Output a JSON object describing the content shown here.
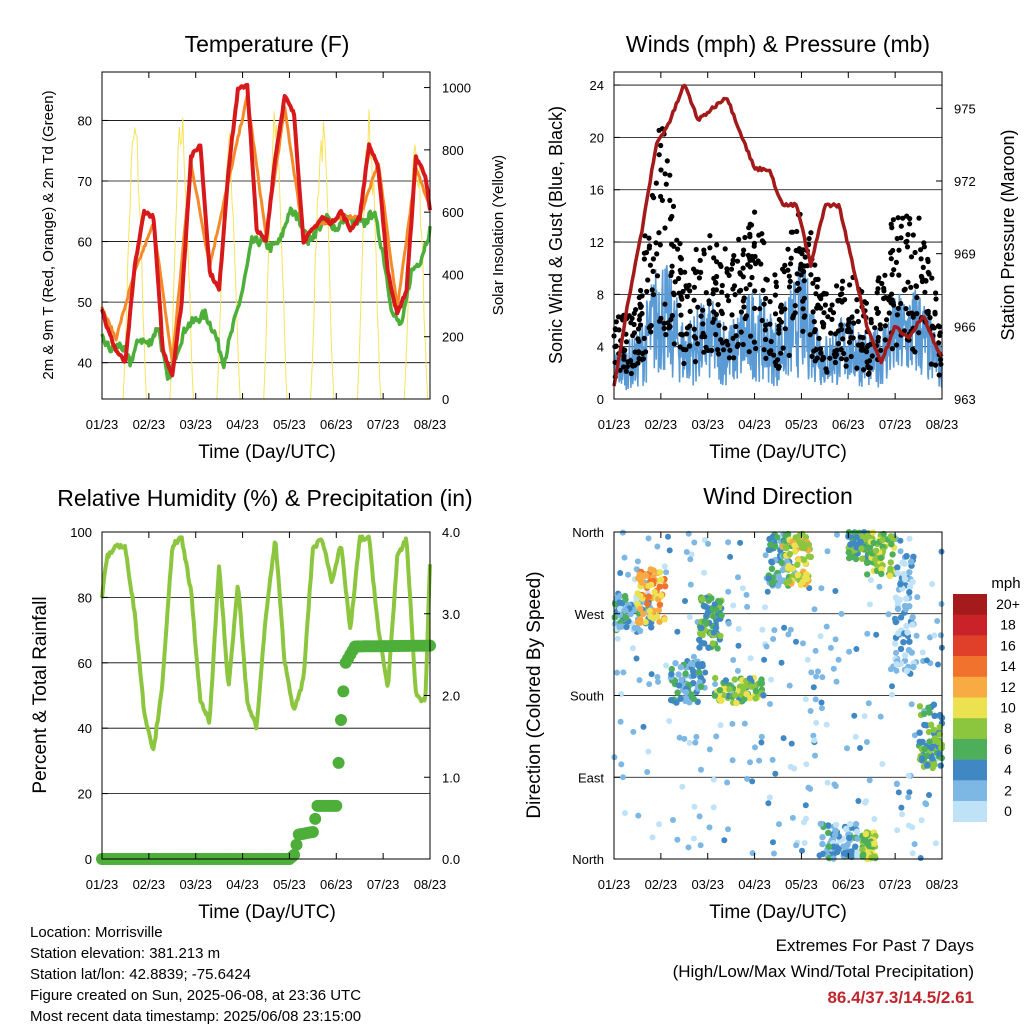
{
  "info": {
    "location": "Location: Morrisville",
    "elevation": "Station elevation: 381.213 m",
    "latlon": "Station lat/lon: 42.8839; -75.6424",
    "created": "Figure created on Sun, 2025-06-08, at 23:36 UTC",
    "recent": "Most recent data timestamp: 2025/06/08 23:15:00"
  },
  "extremes": {
    "title": "Extremes For Past 7 Days",
    "subtitle": "(High/Low/Max Wind/Total Precipitation)",
    "values": "86.4/37.3/14.5/2.61"
  },
  "colors": {
    "temp2m": "#d7191c",
    "temp9m": "#f58a2a",
    "dew": "#4daf3a",
    "solar": "#f7e35a",
    "wind": "#5b9bd5",
    "gust": "#000000",
    "pressure": "#a31a1a",
    "rh": "#8cc63f",
    "precip": "#4daf3a"
  },
  "chart_data": [
    {
      "type": "line",
      "title": "Temperature (F)",
      "xlabel": "Time (Day/UTC)",
      "ylabel": "2m & 9m T (Red, Orange) & 2m Td (Green)",
      "y2label": "Solar Insolation (Yellow)",
      "x_ticks": [
        "01/23",
        "02/23",
        "03/23",
        "04/23",
        "05/23",
        "06/23",
        "07/23",
        "08/23"
      ],
      "ylim": [
        34,
        88
      ],
      "y_ticks": [
        40,
        50,
        60,
        70,
        80
      ],
      "y2lim": [
        0,
        1050
      ],
      "y2_ticks": [
        0,
        200,
        400,
        600,
        800,
        1000
      ],
      "grid": true,
      "series": [
        {
          "name": "2m T",
          "x": [
            0,
            0.1,
            0.3,
            0.5,
            0.7,
            0.9,
            1.1,
            1.3,
            1.5,
            1.7,
            1.9,
            2.1,
            2.3,
            2.5,
            2.7,
            2.9,
            3.1,
            3.3,
            3.5,
            3.7,
            3.9,
            4.1,
            4.3,
            4.5,
            4.7,
            4.9,
            5.1,
            5.3,
            5.5,
            5.7,
            5.9,
            6.1,
            6.3,
            6.5,
            6.7,
            6.9,
            7.0
          ],
          "y": [
            49,
            46,
            42,
            40,
            56,
            65,
            64,
            42,
            38,
            50,
            74,
            76,
            55,
            52,
            72,
            85,
            86,
            62,
            60,
            74,
            84,
            81,
            60,
            62,
            64,
            63,
            65,
            62,
            64,
            76,
            72,
            55,
            48,
            52,
            74,
            71,
            65
          ]
        },
        {
          "name": "9m T",
          "x": [
            0,
            0.3,
            0.7,
            1.1,
            1.5,
            1.9,
            2.3,
            2.7,
            3.1,
            3.5,
            3.9,
            4.3,
            4.7,
            5.1,
            5.5,
            5.9,
            6.3,
            6.7,
            7.0
          ],
          "y": [
            49,
            44,
            55,
            63,
            40,
            73,
            56,
            70,
            84,
            61,
            82,
            61,
            63,
            64,
            64,
            73,
            49,
            72,
            66
          ]
        },
        {
          "name": "2m Td",
          "x": [
            0,
            0.2,
            0.4,
            0.6,
            0.8,
            1.0,
            1.2,
            1.4,
            1.6,
            1.8,
            2.0,
            2.2,
            2.4,
            2.6,
            2.8,
            3.0,
            3.2,
            3.4,
            3.6,
            3.8,
            4.0,
            4.2,
            4.4,
            4.6,
            4.8,
            5.0,
            5.2,
            5.4,
            5.6,
            5.8,
            6.0,
            6.2,
            6.4,
            6.6,
            6.8,
            7.0
          ],
          "y": [
            44,
            42,
            43,
            40,
            44,
            43,
            46,
            37,
            42,
            46,
            47,
            48,
            45,
            40,
            46,
            52,
            60,
            60,
            59,
            60,
            65,
            64,
            60,
            62,
            64,
            62,
            64,
            63,
            63,
            65,
            58,
            48,
            46,
            55,
            57,
            62
          ]
        },
        {
          "name": "Solar Insolation",
          "axis": "y2",
          "days": 7,
          "peaks": [
            930,
            950,
            880,
            950,
            920,
            950,
            880
          ]
        }
      ]
    },
    {
      "type": "scatter",
      "title": "Winds (mph) & Pressure (mb)",
      "xlabel": "Time (Day/UTC)",
      "ylabel": "Sonic Wind & Gust (Blue, Black)",
      "y2label": "Station Pressure (Maroon)",
      "x_ticks": [
        "01/23",
        "02/23",
        "03/23",
        "04/23",
        "05/23",
        "06/23",
        "07/23",
        "08/23"
      ],
      "ylim": [
        0,
        25
      ],
      "y_ticks": [
        0,
        4,
        8,
        12,
        16,
        20,
        24
      ],
      "y2lim": [
        963,
        976.5
      ],
      "y2_ticks": [
        963,
        966,
        969,
        972,
        975
      ],
      "grid": true,
      "wind_envelope": {
        "x": [
          0,
          0.5,
          1.0,
          1.5,
          2.0,
          2.5,
          3.0,
          3.5,
          4.0,
          4.5,
          5.0,
          5.5,
          6.0,
          6.5,
          7.0
        ],
        "y": [
          4,
          5,
          12,
          6,
          8,
          6,
          9,
          6,
          11,
          5,
          7,
          5,
          8,
          9,
          4
        ]
      },
      "gust_envelope": {
        "x": [
          0,
          0.5,
          1.0,
          1.5,
          2.0,
          2.5,
          3.0,
          3.5,
          4.0,
          4.5,
          5.0,
          5.5,
          6.0,
          6.5,
          7.0
        ],
        "y": [
          6,
          8,
          22,
          10,
          13,
          11,
          15,
          9,
          16,
          8,
          10,
          7,
          15,
          14,
          6
        ]
      },
      "pressure": {
        "x": [
          0,
          0.3,
          0.6,
          0.9,
          1.2,
          1.5,
          1.8,
          2.1,
          2.4,
          2.7,
          3.0,
          3.3,
          3.6,
          3.9,
          4.2,
          4.5,
          4.8,
          5.1,
          5.4,
          5.7,
          6.0,
          6.3,
          6.6,
          6.9,
          7.0
        ],
        "y": [
          963.5,
          967,
          970,
          973.5,
          974.5,
          976,
          974.5,
          975,
          975.5,
          974,
          972.5,
          972.5,
          971,
          971,
          968.5,
          971,
          971,
          968.5,
          966,
          964.5,
          966,
          965.5,
          966.5,
          965,
          964.8
        ]
      }
    },
    {
      "type": "line",
      "title": "Relative Humidity (%) & Precipitation (in)",
      "xlabel": "Time (Day/UTC)",
      "ylabel": "Percent & Total Rainfall",
      "x_ticks": [
        "01/23",
        "02/23",
        "03/23",
        "04/23",
        "05/23",
        "06/23",
        "07/23",
        "08/23"
      ],
      "ylim": [
        0,
        100
      ],
      "y_ticks": [
        0,
        20,
        40,
        60,
        80,
        100
      ],
      "y2lim": [
        0,
        4.0
      ],
      "y2_ticks": [
        "0.0",
        "1.0",
        "2.0",
        "3.0",
        "4.0"
      ],
      "grid": true,
      "series": [
        {
          "name": "RH",
          "x": [
            0,
            0.1,
            0.3,
            0.5,
            0.7,
            0.9,
            1.1,
            1.3,
            1.5,
            1.7,
            1.9,
            2.1,
            2.3,
            2.5,
            2.7,
            2.9,
            3.1,
            3.3,
            3.5,
            3.7,
            3.9,
            4.1,
            4.3,
            4.5,
            4.7,
            4.9,
            5.1,
            5.3,
            5.5,
            5.7,
            5.9,
            6.1,
            6.3,
            6.5,
            6.7,
            6.9,
            7.0
          ],
          "y": [
            80,
            92,
            96,
            95,
            75,
            45,
            33,
            55,
            96,
            98,
            82,
            48,
            42,
            90,
            52,
            85,
            48,
            40,
            75,
            98,
            60,
            45,
            55,
            95,
            98,
            85,
            96,
            70,
            98,
            98,
            70,
            52,
            92,
            98,
            50,
            48,
            90
          ]
        },
        {
          "name": "Total Rainfall",
          "axis": "y2",
          "x": [
            0,
            4.0,
            4.1,
            4.2,
            4.5,
            4.6,
            4.8,
            5.0,
            5.1,
            5.2,
            5.4,
            7.0
          ],
          "y": [
            0,
            0,
            0.05,
            0.3,
            0.33,
            0.65,
            0.65,
            0.65,
            1.7,
            2.4,
            2.6,
            2.61
          ]
        }
      ]
    },
    {
      "type": "scatter",
      "title": "Wind Direction",
      "xlabel": "Time (Day/UTC)",
      "ylabel": "Direction (Colored By Speed)",
      "x_ticks": [
        "01/23",
        "02/23",
        "03/23",
        "04/23",
        "05/23",
        "06/23",
        "07/23",
        "08/23"
      ],
      "y_ticks": [
        "North",
        "East",
        "South",
        "West",
        "North"
      ],
      "ylim": [
        0,
        360
      ],
      "grid": true,
      "legend": {
        "title": "mph",
        "labels": [
          "20+",
          "18",
          "16",
          "14",
          "12",
          "10",
          "8",
          "6",
          "4",
          "2",
          "0"
        ],
        "colors": [
          "#a51a1a",
          "#c92228",
          "#e0402a",
          "#f0722c",
          "#f8ab42",
          "#ece24f",
          "#8cc63f",
          "#4daf5a",
          "#3f88c4",
          "#7db7e4",
          "#bfe2f7"
        ],
        "position": "right"
      },
      "clusters": [
        {
          "x": [
            0,
            0.8
          ],
          "dir": [
            250,
            290
          ],
          "speed": 3
        },
        {
          "x": [
            0.5,
            1.1
          ],
          "dir": [
            260,
            320
          ],
          "speed": 12
        },
        {
          "x": [
            1.2,
            1.9
          ],
          "dir": [
            170,
            220
          ],
          "speed": 4
        },
        {
          "x": [
            1.8,
            2.3
          ],
          "dir": [
            230,
            290
          ],
          "speed": 6
        },
        {
          "x": [
            2.1,
            3.2
          ],
          "dir": [
            170,
            200
          ],
          "speed": 7
        },
        {
          "x": [
            3.3,
            3.8
          ],
          "dir": [
            300,
            360
          ],
          "speed": 4
        },
        {
          "x": [
            3.6,
            4.2
          ],
          "dir": [
            300,
            360
          ],
          "speed": 10
        },
        {
          "x": [
            4.4,
            5.2
          ],
          "dir": [
            0,
            40
          ],
          "speed": 3
        },
        {
          "x": [
            5.0,
            5.5
          ],
          "dir": [
            330,
            360
          ],
          "speed": 6
        },
        {
          "x": [
            5.4,
            6.0
          ],
          "dir": [
            310,
            360
          ],
          "speed": 8
        },
        {
          "x": [
            6.0,
            6.4
          ],
          "dir": [
            200,
            340
          ],
          "speed": 2
        },
        {
          "x": [
            6.5,
            7.0
          ],
          "dir": [
            100,
            170
          ],
          "speed": 6
        },
        {
          "x": [
            5.3,
            5.6
          ],
          "dir": [
            0,
            30
          ],
          "speed": 8
        }
      ]
    }
  ]
}
